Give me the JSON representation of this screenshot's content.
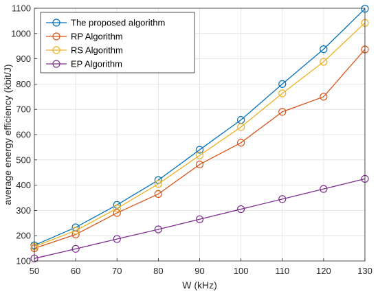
{
  "chart_data": {
    "type": "line",
    "xlabel": "W (kHz)",
    "ylabel": "average energy efficiency (kbit/J)",
    "xlim": [
      50,
      130
    ],
    "ylim": [
      100,
      1100
    ],
    "grid": true,
    "legend_position": "top-left",
    "x": [
      50,
      60,
      70,
      80,
      90,
      100,
      110,
      120,
      130
    ],
    "x_ticks": [
      "50",
      "60",
      "70",
      "80",
      "90",
      "100",
      "110",
      "120",
      "130"
    ],
    "y_ticks": [
      "100",
      "200",
      "300",
      "400",
      "500",
      "600",
      "700",
      "800",
      "900",
      "1000",
      "1100"
    ],
    "series": [
      {
        "name": "The proposed algorithm",
        "color": "#0072BD",
        "values": [
          162,
          233,
          322,
          420,
          540,
          658,
          800,
          938,
          1098
        ]
      },
      {
        "name": "RP Algorithm",
        "color": "#D95319",
        "values": [
          150,
          205,
          290,
          365,
          482,
          568,
          690,
          750,
          937
        ]
      },
      {
        "name": "RS Algorithm",
        "color": "#EDB120",
        "values": [
          157,
          220,
          308,
          405,
          518,
          630,
          763,
          888,
          1042
        ]
      },
      {
        "name": "EP Algorithm",
        "color": "#7E2F8E",
        "values": [
          110,
          148,
          187,
          225,
          265,
          305,
          345,
          385,
          425
        ]
      }
    ]
  }
}
